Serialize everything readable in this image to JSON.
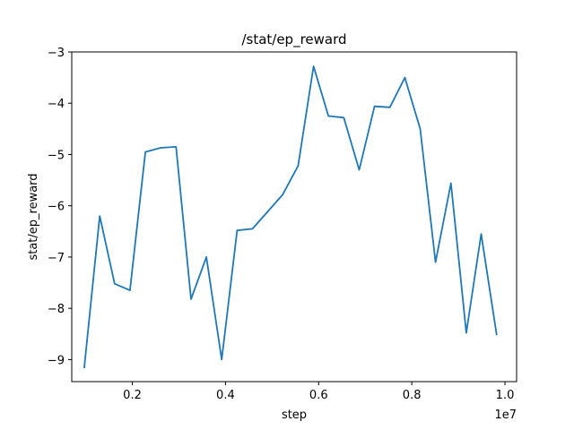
{
  "chart_data": {
    "type": "line",
    "title": "/stat/ep_reward",
    "xlabel": "step",
    "ylabel": "stat/ep_reward",
    "x_offset_label": "1e7",
    "xlim": [
      0.07,
      1.025
    ],
    "ylim": [
      -9.43,
      -3.0
    ],
    "xticks": [
      0.2,
      0.4,
      0.6,
      0.8,
      1.0
    ],
    "xtick_labels": [
      "0.2",
      "0.4",
      "0.6",
      "0.8",
      "1.0"
    ],
    "yticks": [
      -9,
      -8,
      -7,
      -6,
      -5,
      -4,
      -3
    ],
    "ytick_labels": [
      "−9",
      "−8",
      "−7",
      "−6",
      "−5",
      "−4",
      "−3"
    ],
    "grid": false,
    "series": [
      {
        "color": "#1f77b4",
        "x": [
          0.097,
          0.13,
          0.162,
          0.195,
          0.228,
          0.261,
          0.294,
          0.326,
          0.359,
          0.392,
          0.425,
          0.458,
          0.49,
          0.523,
          0.556,
          0.589,
          0.621,
          0.654,
          0.687,
          0.72,
          0.753,
          0.785,
          0.818,
          0.851,
          0.884,
          0.917,
          0.949,
          0.982
        ],
        "y": [
          -9.15,
          -6.2,
          -7.52,
          -7.65,
          -4.95,
          -4.87,
          -4.85,
          -7.82,
          -7.0,
          -9.0,
          -6.48,
          -6.45,
          -6.12,
          -5.78,
          -5.22,
          -3.28,
          -4.25,
          -4.28,
          -5.3,
          -4.06,
          -4.08,
          -3.5,
          -4.5,
          -7.1,
          -5.56,
          -8.48,
          -6.55,
          -8.51
        ]
      }
    ]
  }
}
